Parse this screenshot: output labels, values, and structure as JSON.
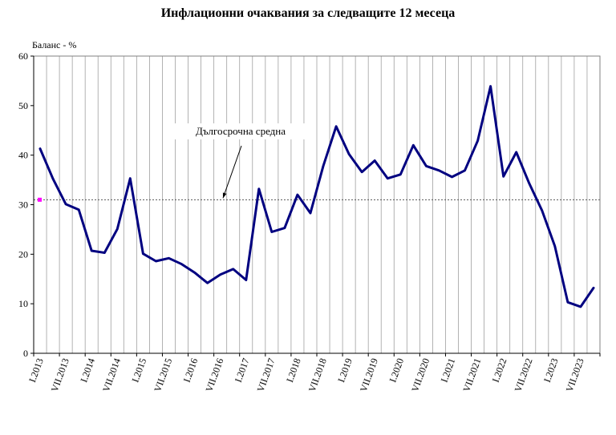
{
  "chart_data": {
    "type": "line",
    "title": "Инфлационни очаквания за следващите 12 месеца",
    "ylabel": "Баланс - %",
    "xlabel": "",
    "ylim": [
      0,
      60
    ],
    "yticks": [
      0,
      10,
      20,
      30,
      40,
      50,
      60
    ],
    "xtick_labels": [
      "I.2013",
      "VII.2013",
      "I.2014",
      "VII.2014",
      "I.2015",
      "VII.2015",
      "I.2016",
      "VII.2016",
      "I.2017",
      "VII.2017",
      "I.2018",
      "VII.2018",
      "I.2019",
      "VII.2019",
      "I.2020",
      "VII.2020",
      "I.2021",
      "VII.2021",
      "I.2022",
      "VII.2022",
      "I.2023",
      "VII.2023"
    ],
    "grid": "vertical",
    "series": [
      {
        "color": "#000080",
        "values": [
          41.3,
          35.2,
          30.1,
          29.0,
          20.7,
          20.3,
          25.1,
          35.3,
          20.1,
          18.6,
          19.2,
          18.0,
          16.3,
          14.2,
          15.9,
          17.0,
          14.8,
          33.2,
          24.5,
          25.3,
          32.0,
          28.3,
          37.8,
          45.8,
          40.2,
          36.6,
          38.9,
          35.3,
          36.1,
          42.0,
          37.8,
          36.9,
          35.6,
          36.9,
          42.9,
          53.9,
          35.7,
          40.6,
          34.3,
          28.8,
          21.6,
          10.3,
          9.4,
          13.2
        ]
      }
    ],
    "long_term_average": {
      "label": "Дългосрочна средна",
      "value": 31.0,
      "marker_color": "#ff00ff"
    }
  }
}
